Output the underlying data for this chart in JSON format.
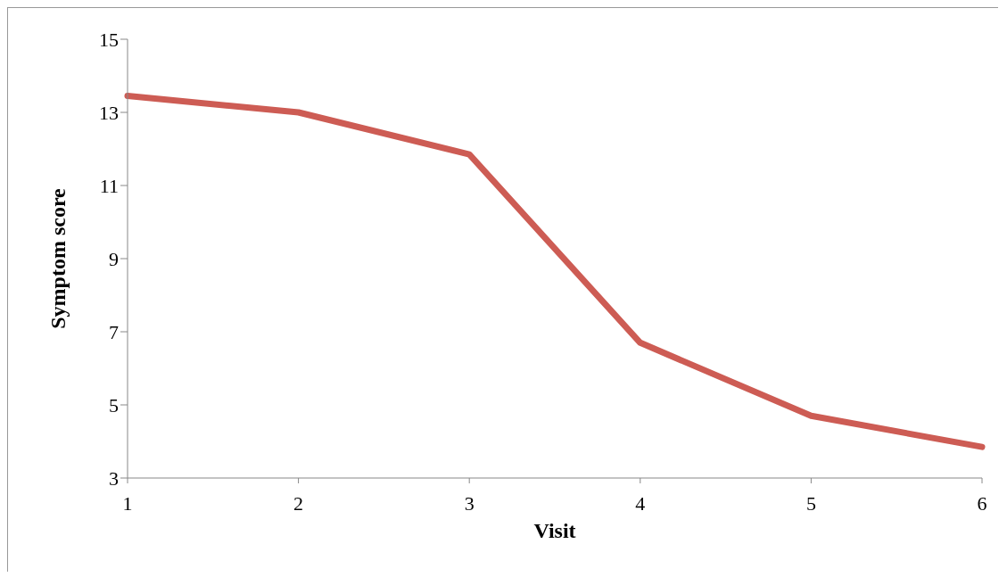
{
  "chart_data": {
    "type": "line",
    "xlabel": "Visit",
    "ylabel": "Symptom score",
    "categories": [
      "1",
      "2",
      "3",
      "4",
      "5",
      "6"
    ],
    "series": [
      {
        "color": "#cd5c54",
        "values": [
          13.45,
          13.0,
          11.85,
          6.7,
          4.7,
          3.85
        ]
      }
    ],
    "ylim": [
      3,
      15
    ],
    "yticks": [
      3,
      5,
      7,
      9,
      11,
      13,
      15
    ],
    "grid": false,
    "legend": false,
    "marker": "none",
    "line_style": "solid"
  }
}
